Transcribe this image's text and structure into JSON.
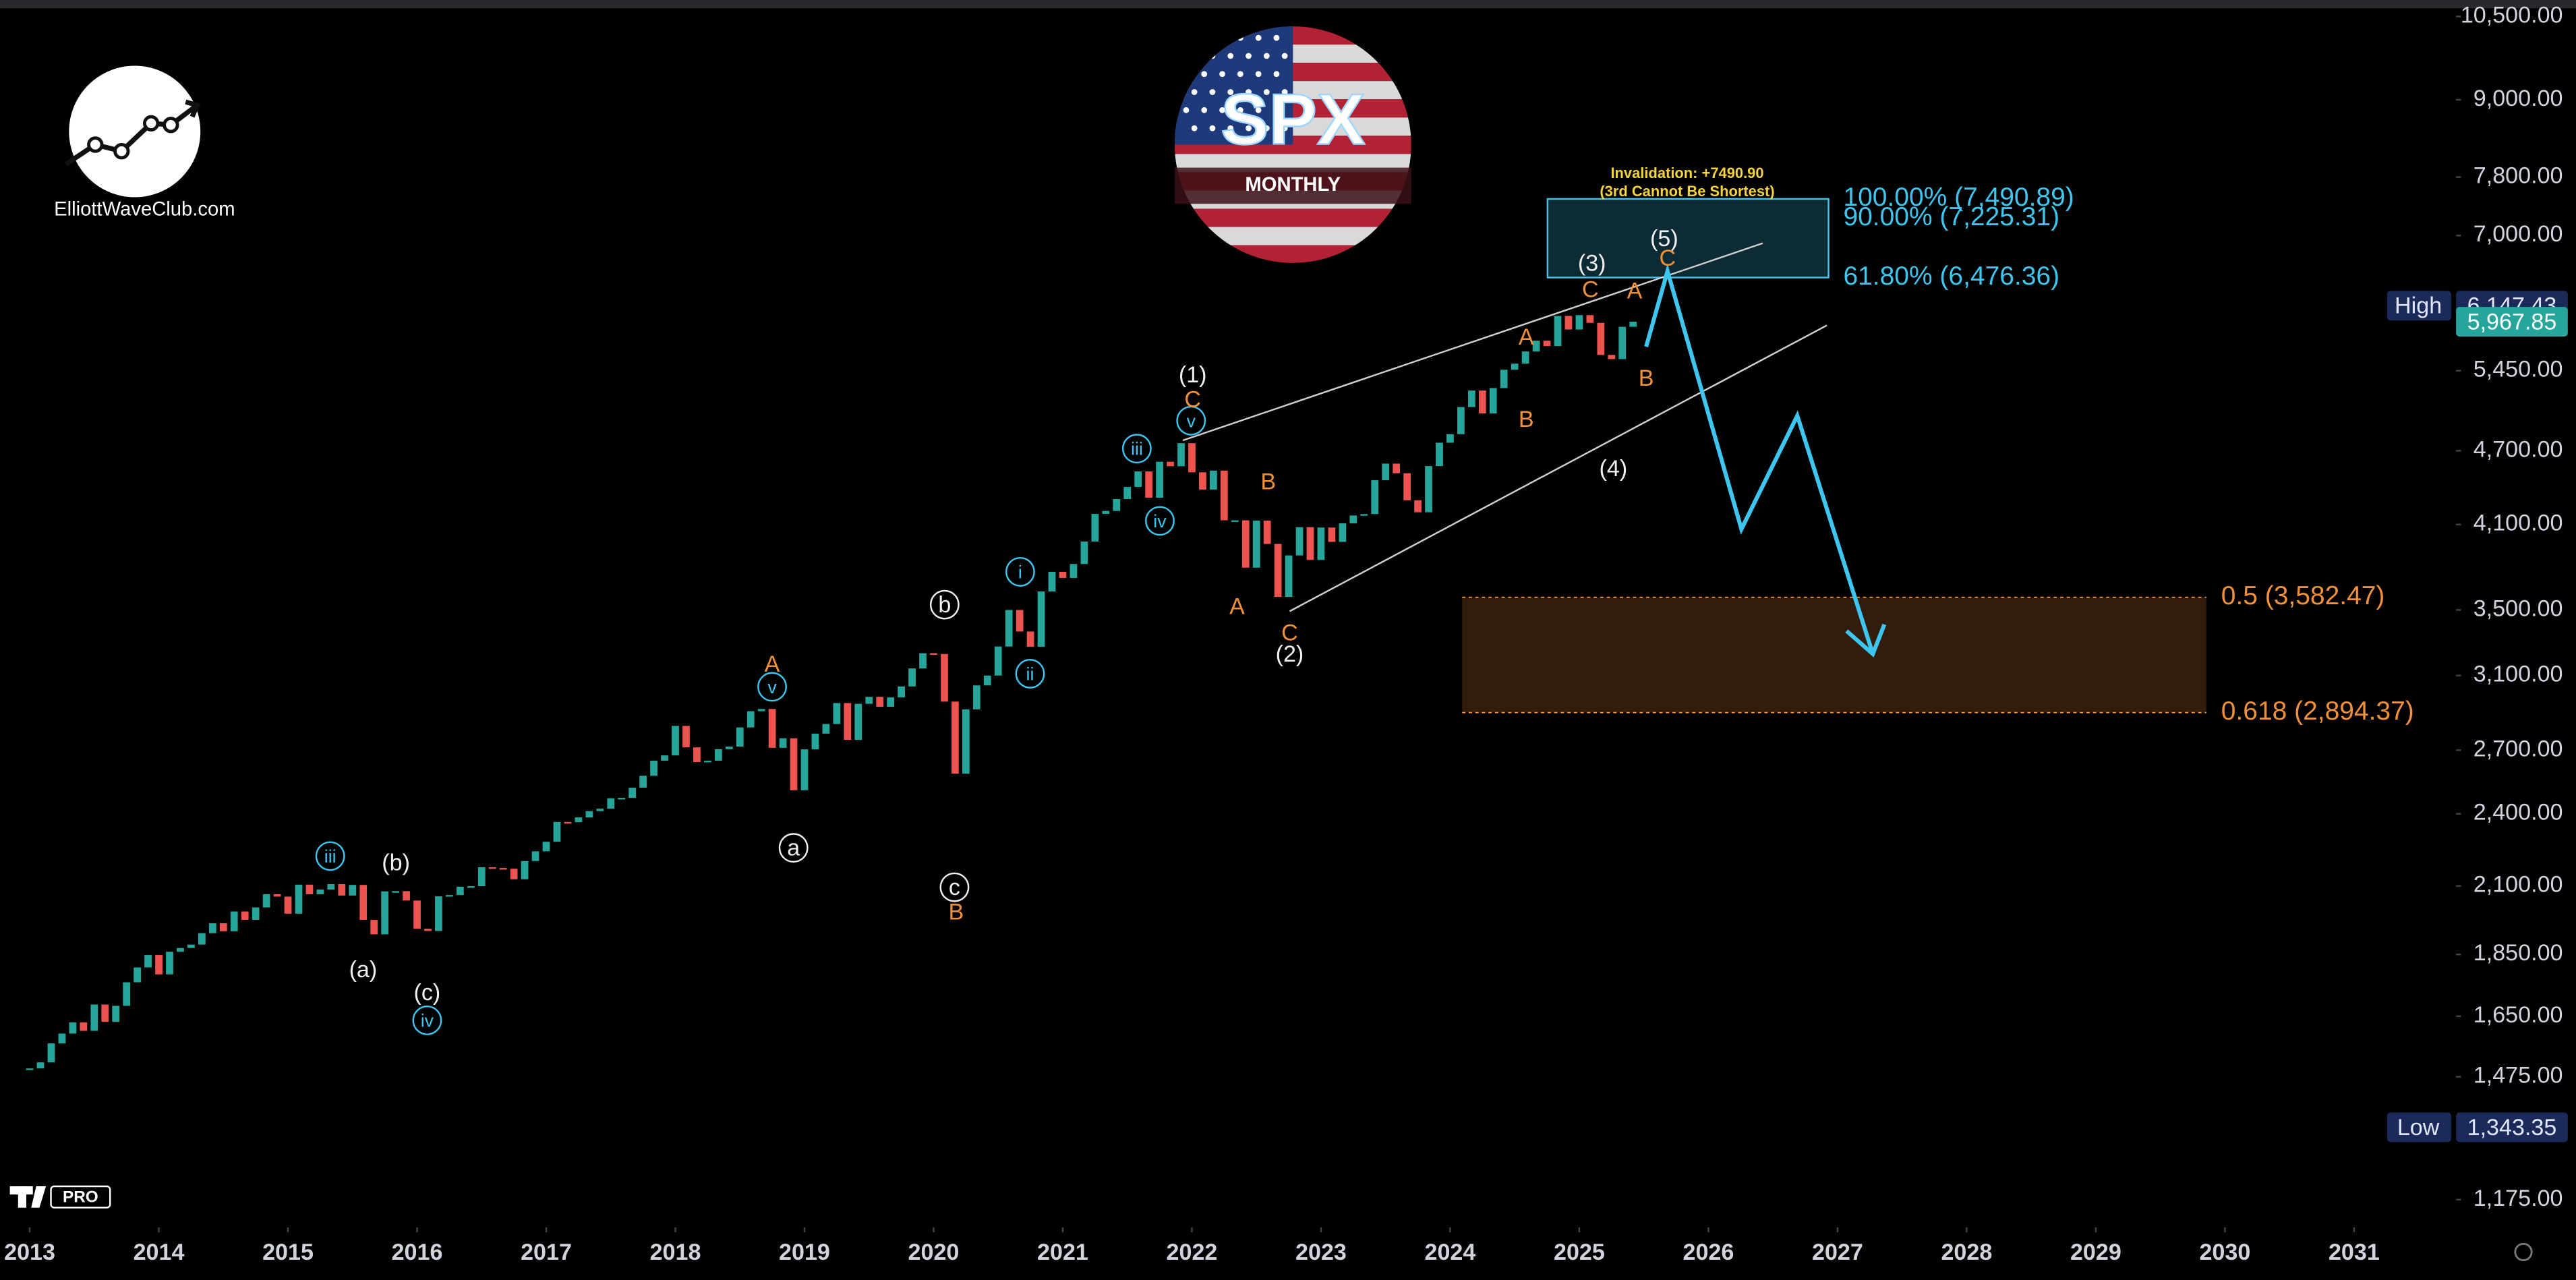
{
  "header": {
    "site": "ElliottWaveClub.com",
    "symbol": "SPX",
    "timeframe": "MONTHLY",
    "watermark": "PRO"
  },
  "chart_data": {
    "type": "candlestick",
    "log_scale": true,
    "grid": false,
    "up_color": "#26a69a",
    "down_color": "#ef5350",
    "xlim": [
      2012.77,
      2031.79
    ],
    "ylim": [
      1123,
      10824
    ],
    "xticks": [
      2013,
      2014,
      2015,
      2016,
      2017,
      2018,
      2019,
      2020,
      2021,
      2022,
      2023,
      2024,
      2025,
      2026,
      2027,
      2028,
      2029,
      2030,
      2031
    ],
    "yticks": [
      {
        "value": 10500,
        "label": "10,500.00"
      },
      {
        "value": 9000,
        "label": "9,000.00"
      },
      {
        "value": 7800,
        "label": "7,800.00"
      },
      {
        "value": 7000,
        "label": "7,000.00"
      },
      {
        "value": 5450,
        "label": "5,450.00"
      },
      {
        "value": 4700,
        "label": "4,700.00"
      },
      {
        "value": 4100,
        "label": "4,100.00"
      },
      {
        "value": 3500,
        "label": "3,500.00"
      },
      {
        "value": 3100,
        "label": "3,100.00"
      },
      {
        "value": 2700,
        "label": "2,700.00"
      },
      {
        "value": 2400,
        "label": "2,400.00"
      },
      {
        "value": 2100,
        "label": "2,100.00"
      },
      {
        "value": 1850,
        "label": "1,850.00"
      },
      {
        "value": 1650,
        "label": "1,650.00"
      },
      {
        "value": 1475,
        "label": "1,475.00"
      },
      {
        "value": 1175,
        "label": "1,175.00"
      }
    ],
    "years": [
      {
        "x": 2013,
        "values": [
          1498,
          1515,
          1569,
          1598,
          1631,
          1606,
          1686,
          1633,
          1682,
          1757,
          1806,
          1848
        ]
      },
      {
        "x": 2014,
        "values": [
          1783,
          1859,
          1872,
          1884,
          1924,
          1960,
          1931,
          2003,
          1972,
          2018,
          2068,
          2059
        ]
      },
      {
        "x": 2015,
        "values": [
          1995,
          2105,
          2068,
          2086,
          2107,
          2063,
          2104,
          1972,
          1920,
          2079,
          2080,
          2044
        ]
      },
      {
        "x": 2016,
        "values": [
          1940,
          1932,
          2060,
          2065,
          2097,
          2099,
          2174,
          2171,
          2168,
          2126,
          2199,
          2239
        ]
      },
      {
        "x": 2017,
        "values": [
          2279,
          2364,
          2363,
          2384,
          2412,
          2423,
          2470,
          2472,
          2519,
          2575,
          2648,
          2674
        ]
      },
      {
        "x": 2018,
        "values": [
          2824,
          2714,
          2641,
          2648,
          2705,
          2718,
          2816,
          2902,
          2914,
          2712,
          2760,
          2507
        ]
      },
      {
        "x": 2019,
        "values": [
          2704,
          2784,
          2834,
          2946,
          2752,
          2942,
          2980,
          2926,
          2977,
          3038,
          3141,
          3231
        ]
      },
      {
        "x": 2020,
        "values": [
          3226,
          2954,
          2585,
          2912,
          3044,
          3100,
          3271,
          3500,
          3363,
          3270,
          3622,
          3756
        ]
      },
      {
        "x": 2021,
        "values": [
          3714,
          3811,
          3973,
          4181,
          4204,
          4298,
          4395,
          4523,
          4308,
          4605,
          4567,
          4766
        ]
      },
      {
        "x": 2022,
        "values": [
          4516,
          4374,
          4530,
          4132,
          4132,
          3785,
          4130,
          3955,
          3586,
          3872,
          4080,
          3840
        ]
      },
      {
        "x": 2023,
        "values": [
          4077,
          3970,
          4109,
          4169,
          4180,
          4450,
          4589,
          4508,
          4288,
          4194,
          4568,
          4770
        ]
      },
      {
        "x": 2024,
        "values": [
          4846,
          5096,
          5254,
          5036,
          5278,
          5460,
          5522,
          5648,
          5762,
          5705,
          6032,
          5882
        ]
      },
      {
        "x": 2025,
        "values": [
          6041,
          5955,
          5612,
          5569,
          5912,
          5968
        ]
      }
    ],
    "fib_levels": [
      {
        "value": 7490.89,
        "label": "100.00% (7,490.89)",
        "color": "#3cc6f0"
      },
      {
        "value": 7225.31,
        "label": "90.00% (7,225.31)",
        "color": "#3cc6f0"
      },
      {
        "value": 6476.36,
        "label": "61.80% (6,476.36)",
        "color": "#3cc6f0"
      },
      {
        "value": 3582.47,
        "label": "0.5 (3,582.47)",
        "color": "#f0913a"
      },
      {
        "value": 2894.37,
        "label": "0.618 (2,894.37)",
        "color": "#f0913a"
      }
    ],
    "price_labels": [
      {
        "name": "High",
        "value": 6147.43,
        "label": "6,147.43"
      },
      {
        "value": 5967.85,
        "label": "5,967.85"
      },
      {
        "name": "Low",
        "value": 1343.35,
        "label": "1,343.35"
      }
    ],
    "invalidation": [
      "Invalidation: +7490.90",
      "(3rd Cannot Be Shortest)"
    ],
    "wave_labels": [
      "(b)",
      "(a)",
      "(c)",
      "(1)",
      "(2)",
      "(3)",
      "(4)",
      "(5)",
      "b",
      "a",
      "c",
      "iii",
      "iv",
      "v",
      "iii",
      "v",
      "iv",
      "i",
      "ii",
      "A",
      "B",
      "C",
      "B",
      "A",
      "C",
      "A",
      "B",
      "C",
      "A",
      "B",
      "C"
    ]
  }
}
